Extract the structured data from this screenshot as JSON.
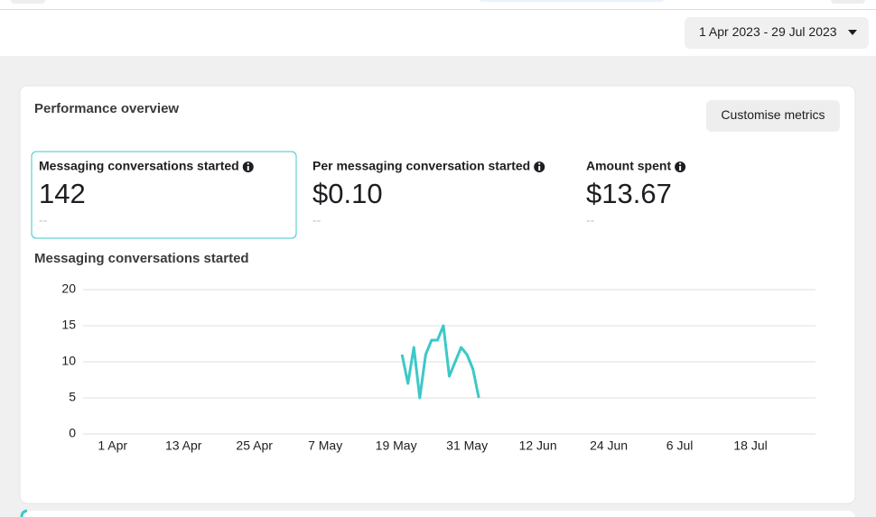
{
  "date_range": "1 Apr 2023 - 29 Jul 2023",
  "card": {
    "title": "Performance overview",
    "button": "Customise metrics",
    "metrics": [
      {
        "label": "Messaging conversations started",
        "value": "142",
        "comparison": "--"
      },
      {
        "label": "Per messaging conversation started",
        "value": "$0.10",
        "comparison": "--"
      },
      {
        "label": "Amount spent",
        "value": "$13.67",
        "comparison": "--"
      }
    ]
  },
  "chart_data": {
    "type": "line",
    "title": "Messaging conversations started",
    "x": [
      "2023-05-20",
      "2023-05-21",
      "2023-05-22",
      "2023-05-23",
      "2023-05-24",
      "2023-05-25",
      "2023-05-26",
      "2023-05-27",
      "2023-05-28",
      "2023-05-29",
      "2023-05-30",
      "2023-05-31",
      "2023-06-01",
      "2023-06-02"
    ],
    "values": [
      11,
      7,
      12,
      5,
      11,
      13,
      13,
      15,
      8,
      10,
      12,
      11,
      9,
      5
    ],
    "color": "#3cc8c8",
    "xlim": [
      "2023-03-27",
      "2023-07-29"
    ],
    "xticks": [
      {
        "value": "2023-04-01",
        "label": "1 Apr"
      },
      {
        "value": "2023-04-13",
        "label": "13 Apr"
      },
      {
        "value": "2023-04-25",
        "label": "25 Apr"
      },
      {
        "value": "2023-05-07",
        "label": "7 May"
      },
      {
        "value": "2023-05-19",
        "label": "19 May"
      },
      {
        "value": "2023-05-31",
        "label": "31 May"
      },
      {
        "value": "2023-06-12",
        "label": "12 Jun"
      },
      {
        "value": "2023-06-24",
        "label": "24 Jun"
      },
      {
        "value": "2023-07-06",
        "label": "6 Jul"
      },
      {
        "value": "2023-07-18",
        "label": "18 Jul"
      }
    ],
    "ylim": [
      0,
      20
    ],
    "yticks": [
      0,
      5,
      10,
      15,
      20
    ],
    "grid": true
  }
}
